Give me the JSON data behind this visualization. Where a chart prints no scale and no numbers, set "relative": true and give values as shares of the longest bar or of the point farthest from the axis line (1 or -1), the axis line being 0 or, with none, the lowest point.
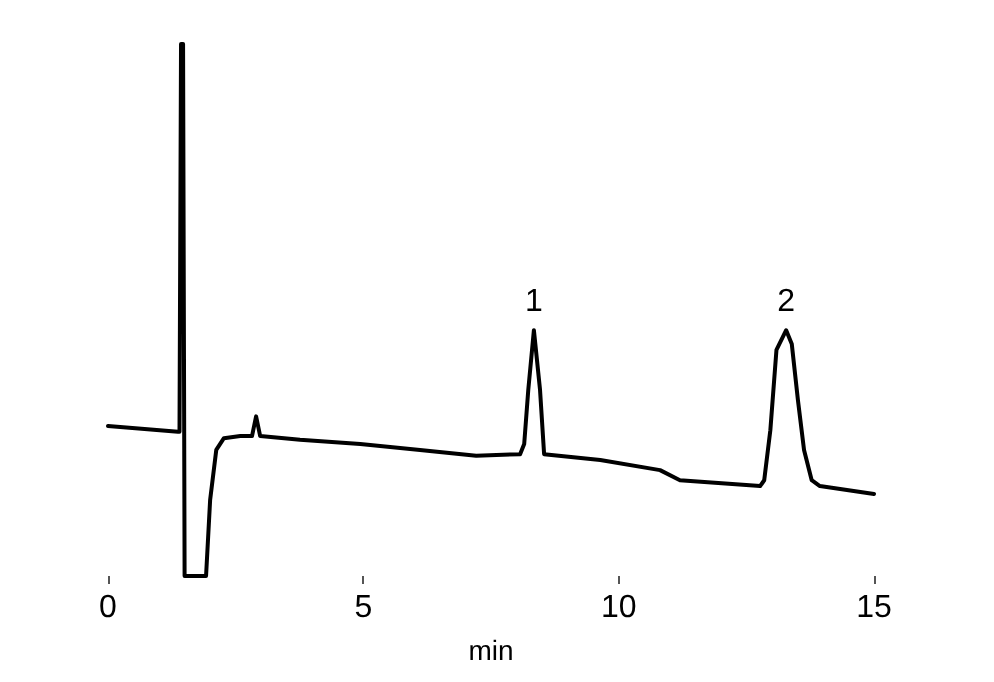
{
  "chart_data": {
    "type": "line",
    "relative": true,
    "xlabel": "min",
    "xlim": [
      0,
      15
    ],
    "xticks": [
      0,
      5,
      10,
      15
    ],
    "grid": false,
    "marker": "none",
    "line_style": "solid",
    "annotations": [
      {
        "text": "1",
        "x": 8.34,
        "y": 0.462
      },
      {
        "text": "2",
        "x": 13.28,
        "y": 0.462
      }
    ],
    "series": [
      {
        "color": "#000000",
        "x": [
          0,
          1.37,
          1.4,
          1.43,
          1.47,
          1.5,
          1.92,
          2.0,
          2.12,
          2.27,
          2.59,
          2.82,
          2.9,
          2.98,
          3.76,
          4.94,
          6.11,
          7.21,
          8.07,
          8.15,
          8.23,
          8.34,
          8.46,
          8.54,
          9.64,
          10.81,
          11.2,
          12.77,
          12.85,
          12.97,
          13.09,
          13.28,
          13.39,
          13.51,
          13.63,
          13.78,
          13.94,
          15
        ],
        "values": [
          0.282,
          0.271,
          0.271,
          1.0,
          1.0,
          0,
          0,
          0.143,
          0.237,
          0.259,
          0.263,
          0.263,
          0.3,
          0.263,
          0.256,
          0.248,
          0.237,
          0.226,
          0.229,
          0.248,
          0.35,
          0.462,
          0.35,
          0.229,
          0.218,
          0.199,
          0.18,
          0.169,
          0.18,
          0.274,
          0.425,
          0.462,
          0.436,
          0.331,
          0.237,
          0.18,
          0.169,
          0.154
        ]
      }
    ]
  }
}
